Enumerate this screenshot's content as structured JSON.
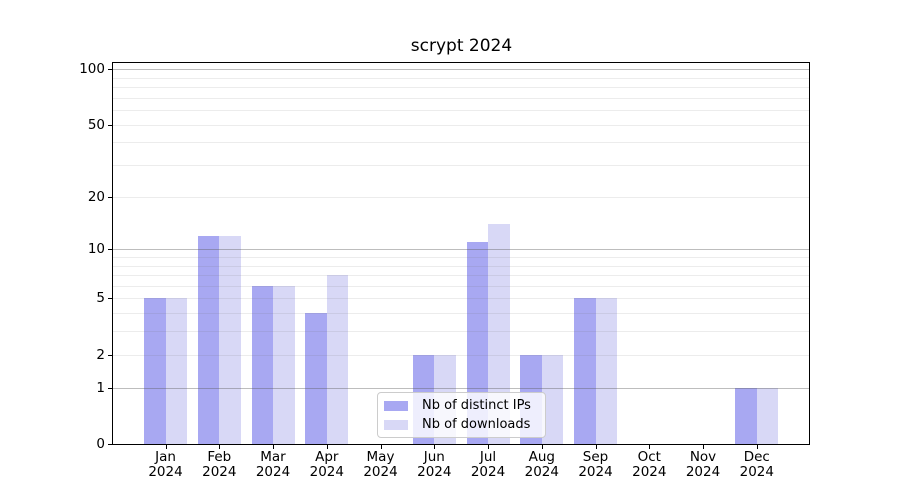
{
  "figure": {
    "title": "scrypt 2024"
  },
  "chart_data": {
    "type": "bar",
    "title": "scrypt 2024",
    "categories": [
      "Jan 2024",
      "Feb 2024",
      "Mar 2024",
      "Apr 2024",
      "May 2024",
      "Jun 2024",
      "Jul 2024",
      "Aug 2024",
      "Sep 2024",
      "Oct 2024",
      "Nov 2024",
      "Dec 2024"
    ],
    "series": [
      {
        "name": "Nb of distinct IPs",
        "color": "#a8a8f2",
        "values": [
          5,
          12,
          6,
          4,
          0,
          2,
          11,
          2,
          5,
          0,
          0,
          1
        ]
      },
      {
        "name": "Nb of downloads",
        "color": "#d8d8f6",
        "values": [
          5,
          12,
          6,
          7,
          0,
          2,
          14,
          2,
          5,
          0,
          0,
          1
        ]
      }
    ],
    "xlabel": "",
    "ylabel": "",
    "yscale": "log1p",
    "ylim": [
      0,
      110
    ],
    "yticks": [
      0,
      1,
      2,
      5,
      10,
      20,
      50,
      100
    ],
    "gridlines_major": [
      1,
      10,
      100
    ],
    "gridlines_minor": [
      2,
      3,
      4,
      5,
      6,
      7,
      8,
      9,
      20,
      30,
      40,
      50,
      60,
      70,
      80,
      90
    ],
    "grid": true,
    "legend_position": "lower center"
  }
}
